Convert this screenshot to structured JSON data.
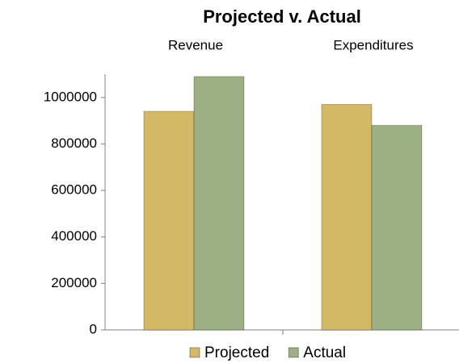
{
  "chart_data": {
    "type": "bar",
    "title": "Projected v. Actual",
    "categories": [
      "Revenue",
      "Expenditures"
    ],
    "series": [
      {
        "name": "Projected",
        "color": "#d3b865",
        "values": [
          940000,
          970000
        ]
      },
      {
        "name": "Actual",
        "color": "#9cb084",
        "values": [
          1090000,
          880000
        ]
      }
    ],
    "ylim": [
      0,
      1100000
    ],
    "yticks": [
      0,
      200000,
      400000,
      600000,
      800000,
      1000000
    ],
    "grid": false,
    "legend": "bottom"
  }
}
